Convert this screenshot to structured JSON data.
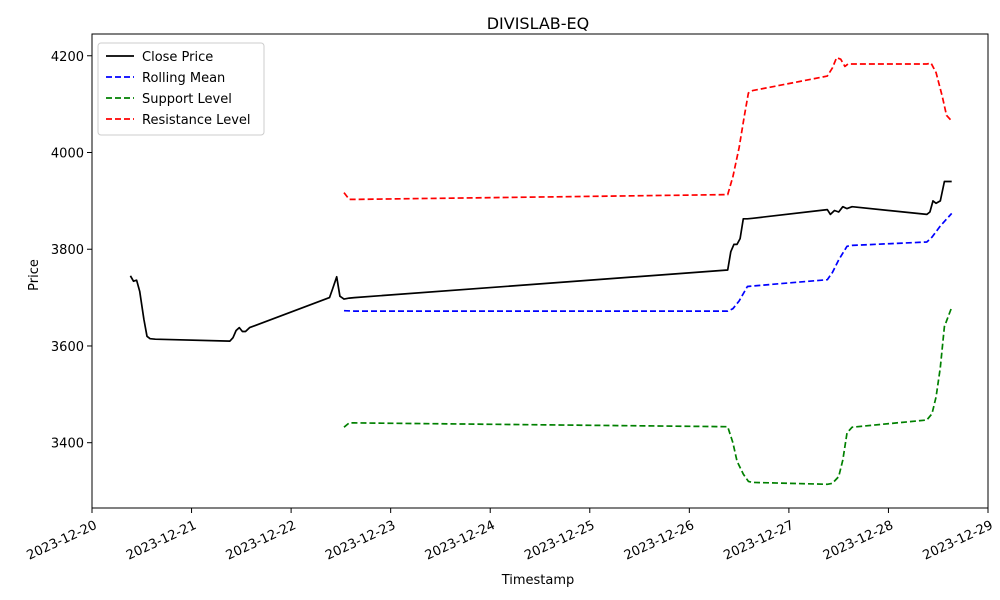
{
  "chart_data": {
    "type": "line",
    "title": "DIVISLAB-EQ",
    "xlabel": "Timestamp",
    "ylabel": "Price",
    "xlim": [
      "2023-12-20 00:00",
      "2023-12-29 00:00"
    ],
    "ylim": [
      3265,
      4245
    ],
    "x_ticks": [
      "2023-12-20",
      "2023-12-21",
      "2023-12-22",
      "2023-12-23",
      "2023-12-24",
      "2023-12-25",
      "2023-12-26",
      "2023-12-27",
      "2023-12-28",
      "2023-12-29"
    ],
    "y_ticks": [
      3400,
      3600,
      3800,
      4000,
      4200
    ],
    "grid": false,
    "legend_position": "upper-left",
    "series": [
      {
        "name": "Close Price",
        "color": "#000000",
        "dash": "solid",
        "points": [
          [
            "2023-12-20 09:15",
            3745
          ],
          [
            "2023-12-20 10:00",
            3734
          ],
          [
            "2023-12-20 10:45",
            3736
          ],
          [
            "2023-12-20 11:30",
            3713
          ],
          [
            "2023-12-20 12:30",
            3655
          ],
          [
            "2023-12-20 13:15",
            3620
          ],
          [
            "2023-12-20 14:00",
            3615
          ],
          [
            "2023-12-20 15:15",
            3614
          ],
          [
            "2023-12-21 09:15",
            3610
          ],
          [
            "2023-12-21 10:00",
            3617
          ],
          [
            "2023-12-21 10:45",
            3632
          ],
          [
            "2023-12-21 11:30",
            3638
          ],
          [
            "2023-12-21 12:15",
            3630
          ],
          [
            "2023-12-21 13:00",
            3630
          ],
          [
            "2023-12-21 14:00",
            3638
          ],
          [
            "2023-12-21 15:15",
            3642
          ],
          [
            "2023-12-22 09:15",
            3700
          ],
          [
            "2023-12-22 10:00",
            3718
          ],
          [
            "2023-12-22 11:00",
            3743
          ],
          [
            "2023-12-22 11:45",
            3703
          ],
          [
            "2023-12-22 12:45",
            3697
          ],
          [
            "2023-12-22 14:00",
            3699
          ],
          [
            "2023-12-22 15:15",
            3700
          ],
          [
            "2023-12-26 09:15",
            3757
          ],
          [
            "2023-12-26 10:00",
            3795
          ],
          [
            "2023-12-26 10:45",
            3810
          ],
          [
            "2023-12-26 11:30",
            3810
          ],
          [
            "2023-12-26 12:15",
            3822
          ],
          [
            "2023-12-26 13:00",
            3863
          ],
          [
            "2023-12-26 14:00",
            3863
          ],
          [
            "2023-12-26 15:15",
            3864
          ],
          [
            "2023-12-27 09:15",
            3882
          ],
          [
            "2023-12-27 10:00",
            3872
          ],
          [
            "2023-12-27 11:00",
            3880
          ],
          [
            "2023-12-27 12:00",
            3877
          ],
          [
            "2023-12-27 13:00",
            3888
          ],
          [
            "2023-12-27 14:00",
            3884
          ],
          [
            "2023-12-27 15:15",
            3888
          ],
          [
            "2023-12-28 09:15",
            3872
          ],
          [
            "2023-12-28 10:00",
            3877
          ],
          [
            "2023-12-28 10:45",
            3900
          ],
          [
            "2023-12-28 11:30",
            3895
          ],
          [
            "2023-12-28 12:30",
            3900
          ],
          [
            "2023-12-28 13:30",
            3940
          ],
          [
            "2023-12-28 15:15",
            3940
          ]
        ]
      },
      {
        "name": "Rolling Mean",
        "color": "#0000ff",
        "dash": "dashed",
        "points": [
          [
            "2023-12-22 12:45",
            3673
          ],
          [
            "2023-12-22 15:15",
            3672
          ],
          [
            "2023-12-26 09:15",
            3672
          ],
          [
            "2023-12-26 10:30",
            3677
          ],
          [
            "2023-12-26 12:00",
            3693
          ],
          [
            "2023-12-26 14:00",
            3723
          ],
          [
            "2023-12-26 15:15",
            3724
          ],
          [
            "2023-12-27 09:15",
            3737
          ],
          [
            "2023-12-27 10:30",
            3752
          ],
          [
            "2023-12-27 12:00",
            3778
          ],
          [
            "2023-12-27 14:00",
            3806
          ],
          [
            "2023-12-27 15:15",
            3808
          ],
          [
            "2023-12-28 09:15",
            3815
          ],
          [
            "2023-12-28 10:30",
            3825
          ],
          [
            "2023-12-28 12:30",
            3848
          ],
          [
            "2023-12-28 15:15",
            3874
          ]
        ]
      },
      {
        "name": "Support Level",
        "color": "#008000",
        "dash": "dashed",
        "points": [
          [
            "2023-12-22 12:45",
            3432
          ],
          [
            "2023-12-22 14:00",
            3441
          ],
          [
            "2023-12-22 15:15",
            3441
          ],
          [
            "2023-12-26 09:15",
            3433
          ],
          [
            "2023-12-26 10:30",
            3400
          ],
          [
            "2023-12-26 11:30",
            3362
          ],
          [
            "2023-12-26 13:00",
            3335
          ],
          [
            "2023-12-26 14:15",
            3320
          ],
          [
            "2023-12-26 15:15",
            3318
          ],
          [
            "2023-12-27 09:15",
            3314
          ],
          [
            "2023-12-27 10:30",
            3316
          ],
          [
            "2023-12-27 12:00",
            3330
          ],
          [
            "2023-12-27 13:00",
            3364
          ],
          [
            "2023-12-27 14:00",
            3420
          ],
          [
            "2023-12-27 15:15",
            3432
          ],
          [
            "2023-12-28 09:15",
            3447
          ],
          [
            "2023-12-28 10:30",
            3460
          ],
          [
            "2023-12-28 11:30",
            3495
          ],
          [
            "2023-12-28 12:30",
            3555
          ],
          [
            "2023-12-28 13:30",
            3640
          ],
          [
            "2023-12-28 15:15",
            3680
          ]
        ]
      },
      {
        "name": "Resistance Level",
        "color": "#ff0000",
        "dash": "dashed",
        "points": [
          [
            "2023-12-22 12:45",
            3917
          ],
          [
            "2023-12-22 14:00",
            3903
          ],
          [
            "2023-12-22 15:15",
            3903
          ],
          [
            "2023-12-26 09:15",
            3913
          ],
          [
            "2023-12-26 10:30",
            3950
          ],
          [
            "2023-12-26 12:00",
            4010
          ],
          [
            "2023-12-26 13:15",
            4075
          ],
          [
            "2023-12-26 14:15",
            4123
          ],
          [
            "2023-12-26 15:15",
            4128
          ],
          [
            "2023-12-27 09:15",
            4158
          ],
          [
            "2023-12-27 10:30",
            4175
          ],
          [
            "2023-12-27 11:30",
            4196
          ],
          [
            "2023-12-27 12:30",
            4193
          ],
          [
            "2023-12-27 13:30",
            4178
          ],
          [
            "2023-12-27 14:15",
            4183
          ],
          [
            "2023-12-27 15:15",
            4183
          ],
          [
            "2023-12-28 09:15",
            4183
          ],
          [
            "2023-12-28 10:15",
            4185
          ],
          [
            "2023-12-28 11:30",
            4165
          ],
          [
            "2023-12-28 13:00",
            4115
          ],
          [
            "2023-12-28 14:00",
            4077
          ],
          [
            "2023-12-28 15:15",
            4065
          ]
        ]
      }
    ]
  }
}
